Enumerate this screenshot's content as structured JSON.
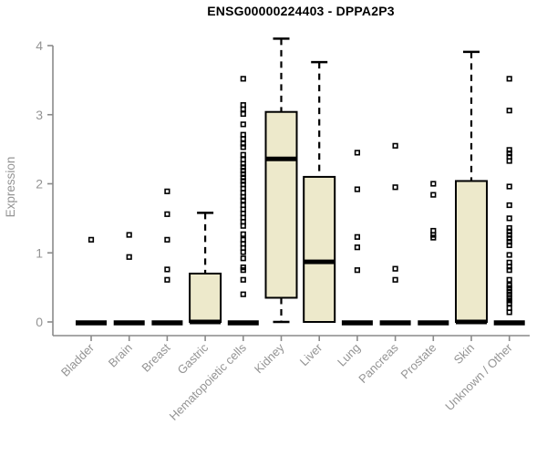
{
  "colors": {
    "background": "#ffffff",
    "box_fill": "#ede9cb",
    "box_stroke": "#000000",
    "median": "#000000",
    "whisker": "#000000",
    "outlier_stroke": "#000000",
    "axis_line": "#8a8a8a",
    "tick_text": "#949494",
    "title_text": "#000000"
  },
  "chart_data": {
    "type": "boxplot",
    "title": "ENSG00000224403 - DPPA2P3",
    "xlabel": "",
    "ylabel": "Expression",
    "ylim": [
      0,
      4.15
    ],
    "yticks": [
      0,
      1,
      2,
      3,
      4
    ],
    "grid": false,
    "legend": false,
    "categories": [
      "Bladder",
      "Brain",
      "Breast",
      "Gastric",
      "Hematopoietic cells",
      "Kidney",
      "Liver",
      "Lung",
      "Pancreas",
      "Prostate",
      "Skin",
      "Unknown / Other"
    ],
    "series": [
      {
        "name": "Bladder",
        "q1": 0,
        "median": 0,
        "q3": 0,
        "whisker_low": 0,
        "whisker_high": 0,
        "outliers": [
          1.19
        ]
      },
      {
        "name": "Brain",
        "q1": 0,
        "median": 0,
        "q3": 0,
        "whisker_low": 0,
        "whisker_high": 0,
        "outliers": [
          1.26,
          0.94
        ]
      },
      {
        "name": "Breast",
        "q1": 0,
        "median": 0,
        "q3": 0,
        "whisker_low": 0,
        "whisker_high": 0,
        "outliers": [
          1.89,
          1.56,
          1.19,
          0.76,
          0.61
        ]
      },
      {
        "name": "Gastric",
        "q1": 0,
        "median": 0,
        "q3": 0.7,
        "whisker_low": 0,
        "whisker_high": 1.58,
        "outliers": []
      },
      {
        "name": "Hematopoietic cells",
        "q1": 0,
        "median": 0,
        "q3": 0,
        "whisker_low": 0,
        "whisker_high": 0,
        "outliers": [
          3.52,
          3.14,
          3.08,
          3.01,
          2.86,
          2.71,
          2.65,
          2.58,
          2.53,
          2.42,
          2.35,
          2.29,
          2.24,
          2.19,
          2.14,
          2.09,
          2.04,
          1.99,
          1.93,
          1.87,
          1.81,
          1.76,
          1.69,
          1.63,
          1.57,
          1.51,
          1.45,
          1.39,
          1.27,
          1.19,
          1.13,
          1.07,
          1.01,
          0.92,
          0.79,
          0.75,
          0.61,
          0.4
        ]
      },
      {
        "name": "Kidney",
        "q1": 0.35,
        "median": 2.36,
        "q3": 3.04,
        "whisker_low": 0,
        "whisker_high": 4.1,
        "outliers": []
      },
      {
        "name": "Liver",
        "q1": 0,
        "median": 0.87,
        "q3": 2.1,
        "whisker_low": 0,
        "whisker_high": 3.76,
        "outliers": []
      },
      {
        "name": "Lung",
        "q1": 0,
        "median": 0,
        "q3": 0,
        "whisker_low": 0,
        "whisker_high": 0,
        "outliers": [
          2.45,
          1.92,
          1.23,
          1.08,
          0.75
        ]
      },
      {
        "name": "Pancreas",
        "q1": 0,
        "median": 0,
        "q3": 0,
        "whisker_low": 0,
        "whisker_high": 0,
        "outliers": [
          2.55,
          1.95,
          0.77,
          0.61
        ]
      },
      {
        "name": "Prostate",
        "q1": 0,
        "median": 0,
        "q3": 0,
        "whisker_low": 0,
        "whisker_high": 0,
        "outliers": [
          2.0,
          1.84,
          1.32,
          1.26,
          1.22
        ]
      },
      {
        "name": "Skin",
        "q1": 0,
        "median": 0,
        "q3": 2.04,
        "whisker_low": 0,
        "whisker_high": 3.91,
        "outliers": []
      },
      {
        "name": "Unknown / Other",
        "q1": 0,
        "median": 0,
        "q3": 0,
        "whisker_low": 0,
        "whisker_high": 0,
        "outliers": [
          3.52,
          3.06,
          2.49,
          2.44,
          2.39,
          2.33,
          1.96,
          1.69,
          1.5,
          1.36,
          1.31,
          1.26,
          1.21,
          1.16,
          1.11,
          0.97,
          0.86,
          0.8,
          0.75,
          0.61,
          0.53,
          0.49,
          0.44,
          0.4,
          0.35,
          0.31,
          0.27,
          0.2,
          0.14
        ]
      }
    ]
  }
}
